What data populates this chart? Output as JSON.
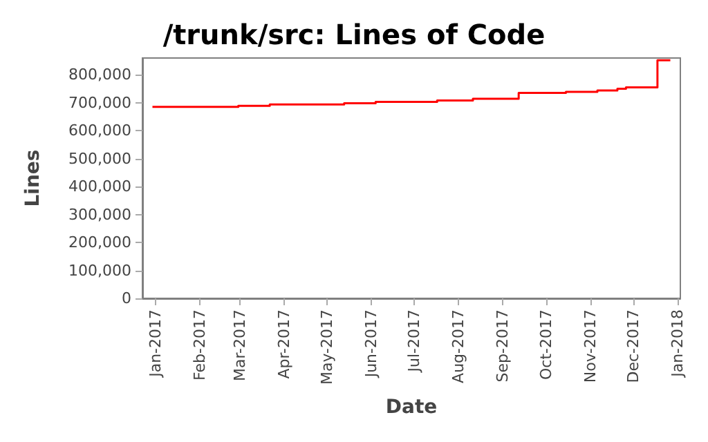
{
  "chart_data": {
    "type": "step",
    "title": "/trunk/src: Lines of Code",
    "xlabel": "Date",
    "ylabel": "Lines",
    "x": [
      "2016-12-30",
      "2017-02-28",
      "2017-03-22",
      "2017-05-13",
      "2017-06-04",
      "2017-07-17",
      "2017-08-11",
      "2017-09-12",
      "2017-10-15",
      "2017-11-06",
      "2017-11-20",
      "2017-11-26",
      "2017-12-18",
      "2017-12-27"
    ],
    "series": [
      {
        "color": "#ff0000",
        "values": [
          685000,
          689000,
          694000,
          698000,
          703000,
          708000,
          714000,
          735000,
          739000,
          744000,
          750000,
          755000,
          852000,
          852000
        ]
      }
    ],
    "xlim": [
      "2016-12-23",
      "2018-01-03"
    ],
    "xticks": [
      {
        "value": "2017-01-01",
        "label": "Jan-2017"
      },
      {
        "value": "2017-02-01",
        "label": "Feb-2017"
      },
      {
        "value": "2017-03-01",
        "label": "Mar-2017"
      },
      {
        "value": "2017-04-01",
        "label": "Apr-2017"
      },
      {
        "value": "2017-05-01",
        "label": "May-2017"
      },
      {
        "value": "2017-06-01",
        "label": "Jun-2017"
      },
      {
        "value": "2017-07-01",
        "label": "Jul-2017"
      },
      {
        "value": "2017-08-01",
        "label": "Aug-2017"
      },
      {
        "value": "2017-09-01",
        "label": "Sep-2017"
      },
      {
        "value": "2017-10-01",
        "label": "Oct-2017"
      },
      {
        "value": "2017-11-01",
        "label": "Nov-2017"
      },
      {
        "value": "2017-12-01",
        "label": "Dec-2017"
      },
      {
        "value": "2018-01-01",
        "label": "Jan-2018"
      }
    ],
    "ylim": [
      0,
      860000
    ],
    "yticks": [
      0,
      {
        "value": 100000,
        "label": "100,000"
      },
      {
        "value": 200000,
        "label": "200,000"
      },
      {
        "value": 300000,
        "label": "300,000"
      },
      {
        "value": 400000,
        "label": "400,000"
      },
      {
        "value": 500000,
        "label": "500,000"
      },
      {
        "value": 600000,
        "label": "600,000"
      },
      {
        "value": 700000,
        "label": "700,000"
      },
      {
        "value": 800000,
        "label": "800,000"
      }
    ],
    "grid": false
  }
}
